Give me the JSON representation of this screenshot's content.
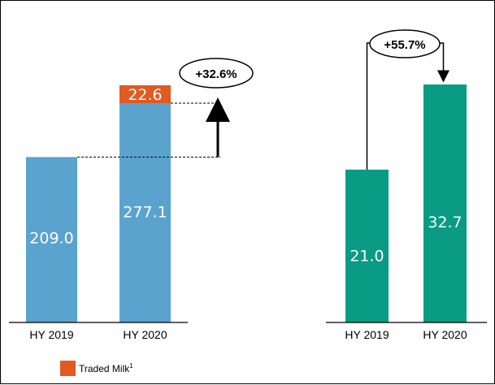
{
  "chart_data": [
    {
      "type": "bar",
      "stacked": true,
      "categories": [
        "HY 2019",
        "HY 2020"
      ],
      "series": [
        {
          "values": [
            209.0,
            277.1
          ],
          "labels": [
            "209.0",
            "277.1"
          ],
          "color": "#5BA3CF"
        },
        {
          "name": "Traded Milk",
          "name_sup": "1",
          "values": [
            0,
            22.6
          ],
          "labels": [
            "",
            "22.6"
          ],
          "color": "#E05A22"
        }
      ],
      "change_label": "+32.6%",
      "grid": false,
      "legend": "bottom-left"
    },
    {
      "type": "bar",
      "categories": [
        "HY 2019",
        "HY 2020"
      ],
      "series": [
        {
          "values": [
            21.0,
            32.7
          ],
          "labels": [
            "21.0",
            "32.7"
          ],
          "color": "#0A9B84"
        }
      ],
      "change_label": "+55.7%",
      "grid": false
    }
  ]
}
